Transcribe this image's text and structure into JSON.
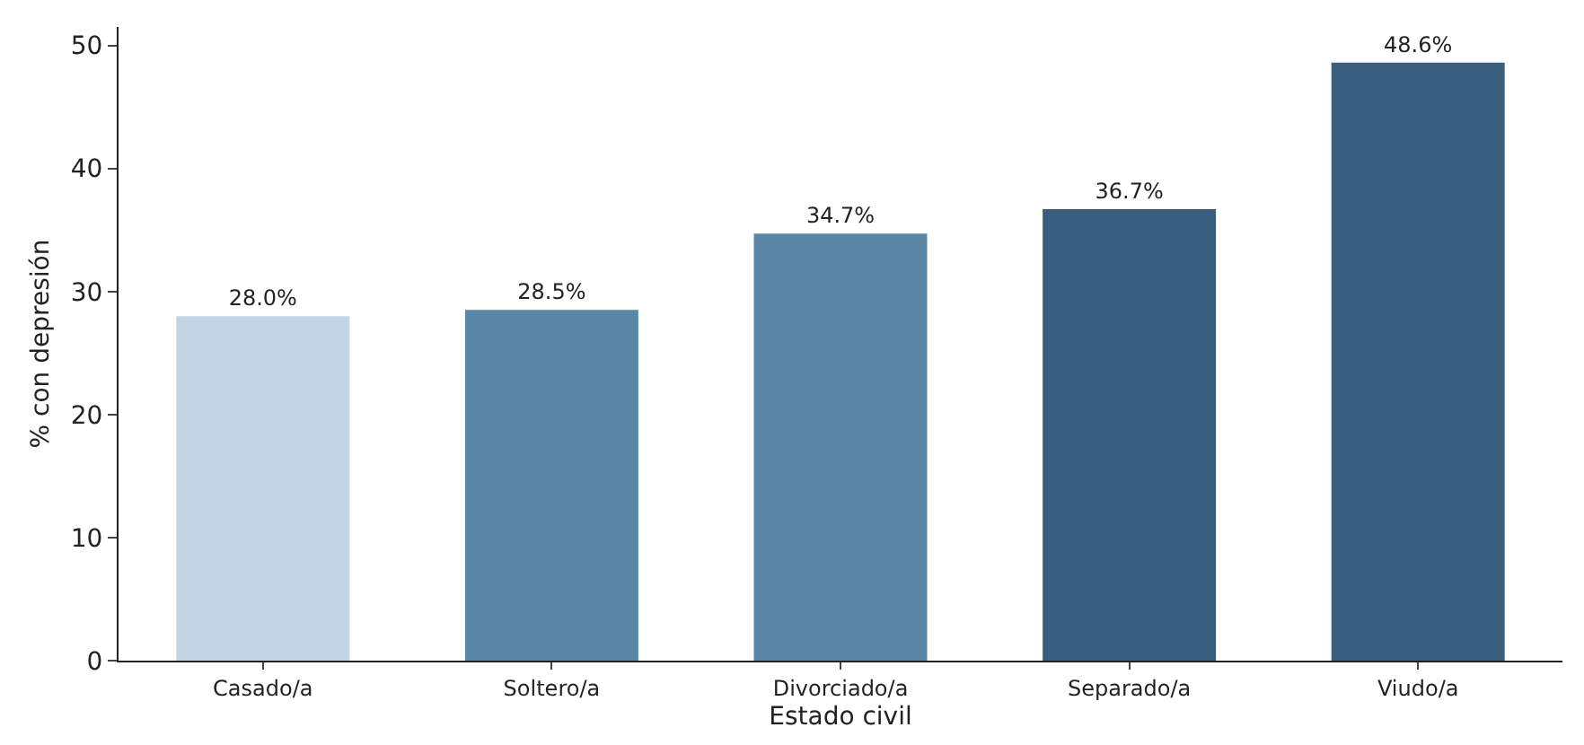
{
  "chart_data": {
    "type": "bar",
    "xlabel": "Estado civil",
    "ylabel": "% con depresión",
    "categories": [
      "Casado/a",
      "Soltero/a",
      "Divorciado/a",
      "Separado/a",
      "Viudo/a"
    ],
    "values": [
      28.0,
      28.5,
      34.7,
      36.7,
      48.6
    ],
    "colors": [
      "#c3d4e3",
      "#5b87a6",
      "#5b87a6",
      "#3a5f7e",
      "#3a5f7e"
    ],
    "value_labels": [
      "28.0%",
      "28.5%",
      "34.7%",
      "36.7%",
      "48.6%"
    ],
    "ylim": [
      0,
      51.5
    ],
    "yticks": [
      0,
      10,
      20,
      30,
      40,
      50
    ],
    "grid": false,
    "legend": false
  }
}
